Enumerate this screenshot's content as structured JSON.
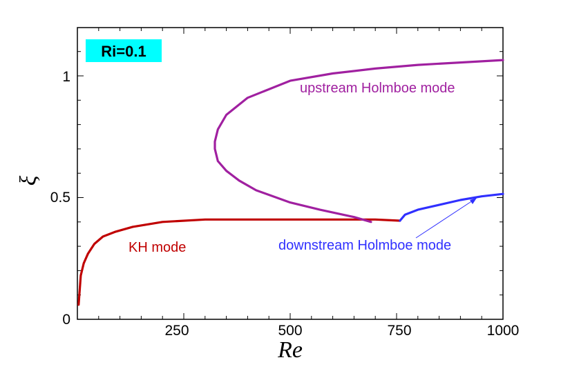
{
  "chart_data": {
    "type": "line",
    "title": "",
    "xlabel": "Re",
    "ylabel": "ξ",
    "xlim": [
      0,
      1000
    ],
    "ylim": [
      0,
      1.2
    ],
    "xticks": [
      250,
      500,
      750,
      1000
    ],
    "xtick_labels": [
      "250",
      "500",
      "750",
      "1000"
    ],
    "yticks": [
      0,
      0.5,
      1
    ],
    "ytick_labels": [
      "0",
      "0.5",
      "1"
    ],
    "grid": false,
    "badge": "Ri=0.1",
    "badge_color": "#00ffff",
    "annotations": {
      "kh": "KH mode",
      "upstream": "upstream Holmboe mode",
      "downstream": "downstream Holmboe mode"
    },
    "series": [
      {
        "color": "#c00000",
        "points": [
          [
            3,
            0.06
          ],
          [
            8,
            0.18
          ],
          [
            15,
            0.23
          ],
          [
            25,
            0.27
          ],
          [
            40,
            0.31
          ],
          [
            60,
            0.34
          ],
          [
            90,
            0.36
          ],
          [
            130,
            0.38
          ],
          [
            200,
            0.4
          ],
          [
            300,
            0.41
          ],
          [
            400,
            0.41
          ],
          [
            500,
            0.41
          ],
          [
            600,
            0.41
          ],
          [
            700,
            0.41
          ],
          [
            758,
            0.405
          ]
        ]
      },
      {
        "color": "#a020a0",
        "points": [
          [
            690,
            0.4
          ],
          [
            650,
            0.42
          ],
          [
            570,
            0.45
          ],
          [
            500,
            0.48
          ],
          [
            420,
            0.53
          ],
          [
            380,
            0.57
          ],
          [
            350,
            0.61
          ],
          [
            330,
            0.65
          ],
          [
            323,
            0.7
          ],
          [
            323,
            0.73
          ],
          [
            330,
            0.78
          ],
          [
            350,
            0.84
          ],
          [
            400,
            0.91
          ],
          [
            500,
            0.98
          ],
          [
            600,
            1.01
          ],
          [
            700,
            1.03
          ],
          [
            800,
            1.045
          ],
          [
            900,
            1.055
          ],
          [
            1000,
            1.065
          ]
        ]
      },
      {
        "color": "#3030ff",
        "points": [
          [
            758,
            0.405
          ],
          [
            770,
            0.43
          ],
          [
            800,
            0.45
          ],
          [
            850,
            0.47
          ],
          [
            900,
            0.49
          ],
          [
            950,
            0.505
          ],
          [
            1000,
            0.515
          ]
        ]
      }
    ]
  }
}
